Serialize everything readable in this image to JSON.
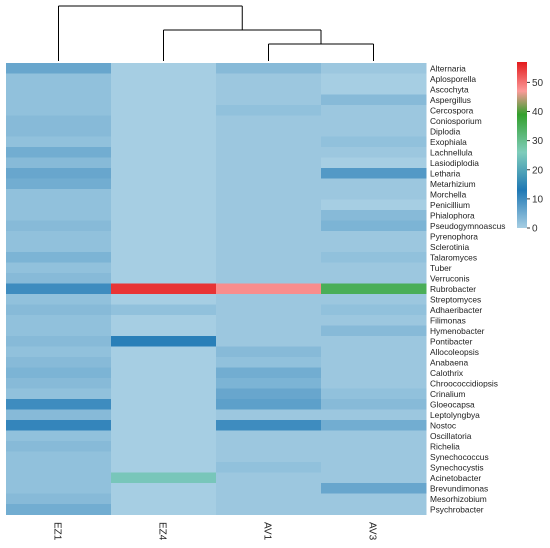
{
  "chart_data": {
    "type": "heatmap",
    "title": "",
    "columns": [
      "EZ1",
      "EZ4",
      "AV1",
      "AV3"
    ],
    "rows": [
      "Alternaria",
      "Aplosporella",
      "Ascochyta",
      "Aspergillus",
      "Cercospora",
      "Coniosporium",
      "Diplodia",
      "Exophiala",
      "Lachnellula",
      "Lasiodiplodia",
      "Letharia",
      "Metarhizium",
      "Morchella",
      "Penicillium",
      "Phialophora",
      "Pseudogymnoascus",
      "Pyrenophora",
      "Sclerotinia",
      "Talaromyces",
      "Tuber",
      "Verruconis",
      "Rubrobacter",
      "Streptomyces",
      "Adhaeribacter",
      "Filimonas",
      "Hymenobacter",
      "Pontibacter",
      "Allocoleopsis",
      "Anabaena",
      "Calothrix",
      "Chroococcidiopsis",
      "Crinalium",
      "Gloeocapsa",
      "Leptolyngbya",
      "Nostoc",
      "Oscillatoria",
      "Richelia",
      "Synechococcus",
      "Synechocystis",
      "Acinetobacter",
      "Brevundimonas",
      "Mesorhizobium",
      "Psychrobacter"
    ],
    "values": [
      [
        6,
        0,
        3,
        1
      ],
      [
        2,
        0,
        1,
        0
      ],
      [
        2,
        0,
        1,
        0
      ],
      [
        2,
        0,
        1,
        3
      ],
      [
        2,
        0,
        2,
        1
      ],
      [
        3,
        0,
        1,
        1
      ],
      [
        3,
        0,
        1,
        1
      ],
      [
        2,
        0,
        1,
        2
      ],
      [
        5,
        0,
        1,
        1
      ],
      [
        3,
        0,
        1,
        0
      ],
      [
        6,
        0,
        1,
        8
      ],
      [
        5,
        0,
        1,
        1
      ],
      [
        2,
        0,
        1,
        1
      ],
      [
        2,
        0,
        1,
        0
      ],
      [
        2,
        0,
        1,
        3
      ],
      [
        3,
        0,
        1,
        4
      ],
      [
        2,
        0,
        1,
        1
      ],
      [
        2,
        0,
        1,
        1
      ],
      [
        4,
        0,
        1,
        2
      ],
      [
        2,
        0,
        1,
        1
      ],
      [
        3,
        0,
        1,
        1
      ],
      [
        10,
        55,
        48,
        35
      ],
      [
        2,
        0,
        1,
        1
      ],
      [
        3,
        2,
        1,
        2
      ],
      [
        2,
        0,
        1,
        1
      ],
      [
        2,
        0,
        1,
        3
      ],
      [
        3,
        12,
        1,
        1
      ],
      [
        2,
        0,
        3,
        1
      ],
      [
        3,
        0,
        2,
        1
      ],
      [
        4,
        0,
        5,
        1
      ],
      [
        3,
        0,
        4,
        1
      ],
      [
        2,
        0,
        6,
        2
      ],
      [
        10,
        0,
        7,
        3
      ],
      [
        3,
        0,
        1,
        1
      ],
      [
        11,
        0,
        10,
        5
      ],
      [
        2,
        0,
        1,
        1
      ],
      [
        3,
        0,
        1,
        1
      ],
      [
        2,
        0,
        1,
        1
      ],
      [
        2,
        0,
        2,
        1
      ],
      [
        2,
        25,
        1,
        1
      ],
      [
        2,
        0,
        1,
        6
      ],
      [
        3,
        0,
        1,
        1
      ],
      [
        5,
        0,
        1,
        1
      ]
    ],
    "colorscale": {
      "min": 0,
      "max": 57,
      "ticks": [
        0,
        10,
        20,
        30,
        40,
        50
      ],
      "stops": [
        {
          "v": 0,
          "color": "#a6cee3"
        },
        {
          "v": 13,
          "color": "#1f78b4"
        },
        {
          "v": 26,
          "color": "#7fcdbb"
        },
        {
          "v": 39,
          "color": "#33a02c"
        },
        {
          "v": 47,
          "color": "#fb9a99"
        },
        {
          "v": 57,
          "color": "#e31a1c"
        }
      ]
    },
    "dendrogram": "((EZ1), (EZ4, (AV1, AV3)))",
    "legend_position": "top-right"
  }
}
